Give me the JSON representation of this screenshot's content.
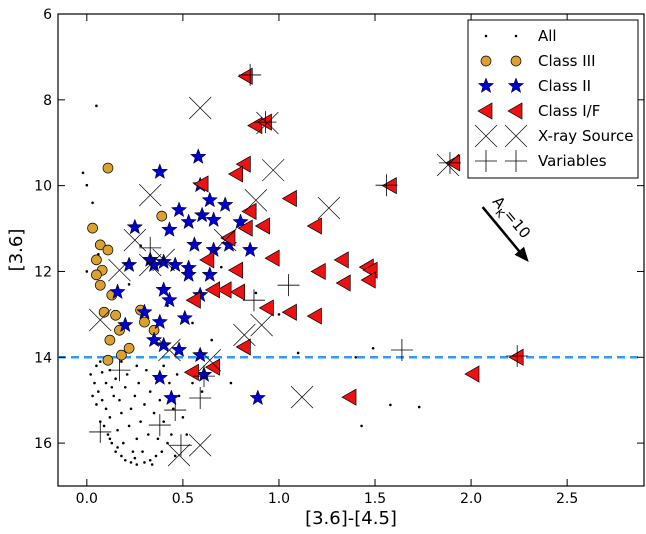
{
  "chart_data": {
    "type": "scatter",
    "x_label": "[3.6]-[4.5]",
    "y_label": "[3.6]",
    "xlim": [
      -0.15,
      2.9
    ],
    "ylim": [
      17,
      6
    ],
    "xticks": [
      {
        "value": 0,
        "label": "0.0"
      },
      {
        "value": 0.5,
        "label": "0.5"
      },
      {
        "value": 1,
        "label": "1.0"
      },
      {
        "value": 1.5,
        "label": "1.5"
      },
      {
        "value": 2,
        "label": "2.0"
      },
      {
        "value": 2.5,
        "label": "2.5"
      }
    ],
    "yticks": [
      6,
      8,
      10,
      12,
      14,
      16
    ],
    "hline": {
      "y": 14,
      "color": "#3399ff"
    },
    "annotation": {
      "text": "A",
      "sub": "K",
      "rest": "=10",
      "arrow_x": [
        2.06,
        2.3
      ],
      "arrow_y": [
        10.5,
        11.78
      ]
    },
    "legend": "upper right",
    "series": [
      {
        "name": "All",
        "color": "#000000",
        "marker": "dot",
        "x": [
          0.02,
          0.04,
          0.06,
          0.08,
          0.1,
          0.12,
          0.09,
          0.11,
          0.13,
          0.15,
          0.18,
          0.2,
          0.23,
          0.26,
          0.3,
          0.33,
          0.36,
          0.39,
          0.42,
          0.44,
          0.4,
          0.35,
          0.3,
          0.25,
          0.2,
          0.15,
          0.12,
          0.07,
          0.05,
          0.14,
          0.18,
          0.22,
          0.26,
          0.29,
          0.16,
          0.19,
          0.24,
          0.32,
          0.37,
          0.28,
          0.23,
          0.17,
          0.1,
          0.08,
          0.13,
          0.21,
          0.27,
          0.33,
          0.38,
          0.45,
          0.5,
          0.48,
          0.43,
          0.36,
          0.31,
          0.26,
          0.18,
          0.4,
          0.47,
          0.55,
          0.6,
          0.52,
          0.46,
          0.34,
          0.25,
          0.16,
          0.12,
          0.07,
          0.05,
          0.03,
          0.05,
          0.0,
          -0.02,
          0.03,
          0.06,
          0.0,
          0.08,
          0.22,
          0.28,
          0.42,
          0.55,
          0.65,
          0.7,
          1.49,
          1.58,
          1.73,
          1.43,
          1.1,
          1.4,
          0.75,
          0.88,
          1.0
        ],
        "y": [
          14.4,
          14.6,
          14.8,
          15.0,
          15.2,
          15.4,
          15.6,
          15.8,
          16.0,
          16.2,
          16.3,
          16.4,
          16.45,
          16.5,
          16.45,
          16.4,
          16.3,
          16.2,
          16.0,
          15.8,
          15.5,
          15.3,
          15.1,
          14.9,
          14.7,
          14.5,
          14.3,
          14.1,
          14.2,
          14.9,
          15.3,
          15.6,
          15.9,
          16.2,
          15.7,
          16.0,
          16.2,
          15.8,
          15.9,
          15.5,
          15.2,
          15.0,
          14.6,
          14.35,
          14.7,
          14.4,
          14.6,
          14.8,
          15.0,
          15.2,
          15.4,
          14.9,
          14.6,
          14.5,
          14.3,
          14.2,
          14.1,
          14.2,
          14.4,
          14.6,
          14.8,
          15.8,
          16.3,
          16.5,
          16.35,
          16.1,
          15.9,
          15.5,
          15.1,
          14.9,
          8.14,
          9.99,
          9.7,
          10.4,
          11.6,
          12.0,
          12.9,
          12.3,
          11.4,
          12.8,
          13.2,
          13.6,
          11.9,
          13.79,
          15.11,
          15.16,
          15.6,
          13.9,
          14.0,
          14.6,
          12.5,
          13.0
        ]
      },
      {
        "name": "Class III",
        "color": "#daa030",
        "marker": "circle",
        "x": [
          0.11,
          0.03,
          0.39,
          0.07,
          0.05,
          0.08,
          0.05,
          0.11,
          0.07,
          0.13,
          0.09,
          0.15,
          0.28,
          0.3,
          0.35,
          0.17,
          0.12,
          0.22,
          0.11,
          0.18
        ],
        "y": [
          9.59,
          10.99,
          10.71,
          11.38,
          11.73,
          11.97,
          12.08,
          11.5,
          12.32,
          12.55,
          12.95,
          13.02,
          12.9,
          13.18,
          13.37,
          13.37,
          13.6,
          13.79,
          14.07,
          13.95
        ]
      },
      {
        "name": "Class II",
        "color": "#0000cc",
        "marker": "star",
        "x": [
          0.58,
          0.38,
          0.59,
          0.64,
          0.72,
          0.48,
          0.6,
          0.66,
          0.53,
          0.25,
          0.43,
          0.8,
          0.74,
          0.56,
          0.33,
          0.4,
          0.35,
          0.46,
          0.22,
          0.53,
          0.64,
          0.53,
          0.16,
          0.4,
          0.59,
          0.43,
          0.3,
          0.51,
          0.38,
          0.2,
          0.35,
          0.4,
          0.48,
          0.59,
          0.38,
          0.61,
          0.44,
          0.89,
          0.85,
          0.66
        ],
        "y": [
          9.33,
          9.68,
          9.99,
          10.34,
          10.45,
          10.57,
          10.69,
          10.8,
          10.85,
          10.97,
          11.03,
          10.85,
          11.38,
          11.38,
          11.73,
          11.78,
          11.85,
          11.85,
          11.85,
          11.92,
          12.08,
          12.08,
          12.48,
          12.43,
          12.55,
          12.67,
          12.95,
          13.09,
          13.18,
          13.25,
          13.6,
          13.72,
          13.83,
          13.95,
          14.48,
          14.41,
          14.95,
          14.95,
          11.5,
          11.5
        ]
      },
      {
        "name": "Class I/F",
        "color": "#ee1111",
        "marker": "triangle-left",
        "x": [
          0.83,
          0.88,
          0.93,
          0.82,
          0.78,
          0.6,
          1.58,
          1.91,
          1.06,
          0.85,
          0.92,
          1.19,
          0.83,
          0.97,
          0.78,
          1.21,
          1.33,
          1.46,
          1.48,
          1.34,
          1.47,
          0.72,
          0.79,
          0.66,
          0.56,
          0.94,
          1.06,
          1.19,
          0.82,
          0.66,
          0.55,
          2.24,
          2.01,
          1.37,
          0.74,
          0.63
        ],
        "y": [
          7.45,
          8.6,
          8.52,
          9.5,
          9.73,
          9.96,
          10.0,
          9.47,
          10.3,
          10.6,
          10.94,
          10.94,
          10.99,
          11.69,
          11.97,
          12.0,
          11.73,
          11.9,
          11.97,
          12.27,
          12.2,
          12.43,
          12.48,
          12.43,
          12.67,
          12.85,
          12.95,
          13.04,
          13.76,
          14.23,
          14.35,
          14.0,
          14.39,
          14.93,
          11.22,
          11.73
        ]
      },
      {
        "name": "X-ray Source",
        "color": "#000000",
        "marker": "x",
        "x": [
          0.59,
          0.94,
          0.97,
          1.88,
          0.33,
          0.88,
          1.26,
          0.25,
          0.17,
          0.33,
          0.07,
          0.82,
          0.91,
          0.43,
          1.12,
          0.48,
          0.59,
          0.4,
          0.72,
          0.64
        ],
        "y": [
          8.19,
          8.54,
          9.64,
          9.52,
          10.22,
          10.34,
          10.52,
          11.27,
          11.97,
          11.85,
          13.13,
          13.48,
          13.25,
          13.83,
          14.93,
          16.28,
          16.05,
          11.73,
          11.27,
          14.07
        ]
      },
      {
        "name": "Variables",
        "color": "#000000",
        "marker": "plus",
        "x": [
          0.85,
          0.93,
          1.56,
          1.89,
          0.87,
          1.05,
          1.64,
          2.24,
          0.59,
          0.61,
          0.07,
          0.38,
          0.49,
          0.46,
          0.17,
          0.33
        ],
        "y": [
          7.42,
          8.52,
          9.99,
          9.47,
          12.67,
          12.32,
          13.83,
          13.97,
          14.95,
          14.44,
          15.74,
          15.58,
          16.05,
          15.23,
          14.3,
          11.45
        ]
      }
    ]
  }
}
